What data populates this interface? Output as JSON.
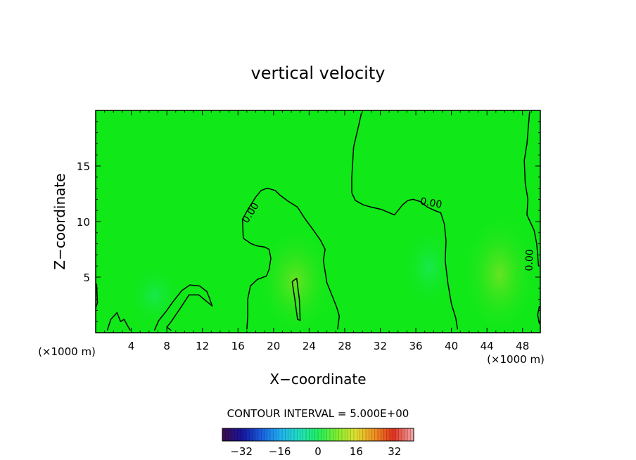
{
  "chart_data": {
    "type": "heatmap",
    "title": "vertical velocity",
    "xlabel": "X−coordinate",
    "ylabel": "Z−coordinate",
    "x_unit_left": "(×1000 m)",
    "x_unit_right": "(×1000 m)",
    "xlim": [
      0,
      50
    ],
    "ylim": [
      0,
      20
    ],
    "x_ticks": [
      4,
      8,
      12,
      16,
      20,
      24,
      28,
      32,
      36,
      40,
      44,
      48
    ],
    "y_ticks": [
      5,
      10,
      15
    ],
    "contour_interval_text": "CONTOUR INTERVAL = 5.000E+00",
    "colorbar": {
      "range": [
        -40,
        40
      ],
      "ticks": [
        -32,
        -16,
        0,
        16,
        32
      ],
      "tick_labels": [
        "−32",
        "−16",
        "0",
        "16",
        "32"
      ],
      "colors": [
        "#3a0c50",
        "#1515a0",
        "#1a5fe0",
        "#20b0f0",
        "#20e0c0",
        "#20f060",
        "#80f030",
        "#e0e030",
        "#f09020",
        "#e03020",
        "#f0a0a0"
      ]
    },
    "field_color": "#10e818",
    "contour_labels": [
      "0.00",
      "0.00",
      "0.00"
    ],
    "contours": [
      {
        "label": "0.00",
        "points": [
          [
            16.5,
            10.2
          ],
          [
            17.2,
            11.2
          ],
          [
            18,
            12.2
          ],
          [
            18.6,
            12.8
          ],
          [
            19.3,
            13
          ],
          [
            20.2,
            12.8
          ],
          [
            20.7,
            12.4
          ],
          [
            21.7,
            11.8
          ],
          [
            22.7,
            11.3
          ],
          [
            23.5,
            10.3
          ],
          [
            24.5,
            9.2
          ],
          [
            25.3,
            8.3
          ],
          [
            25.8,
            7.5
          ],
          [
            25.6,
            6.5
          ],
          [
            26,
            4.5
          ],
          [
            26.7,
            3.1
          ],
          [
            27.1,
            2.3
          ],
          [
            27.4,
            1.5
          ],
          [
            27.2,
            0.3
          ]
        ]
      },
      {
        "points": [
          [
            16.5,
            10.2
          ],
          [
            16.6,
            8.5
          ],
          [
            17.5,
            8
          ],
          [
            18.2,
            7.8
          ],
          [
            19,
            7.7
          ],
          [
            19.5,
            7.5
          ],
          [
            19.7,
            6.7
          ],
          [
            19.5,
            5.7
          ],
          [
            19.2,
            5.1
          ],
          [
            18.2,
            4.8
          ],
          [
            17.4,
            4.2
          ],
          [
            17.1,
            3
          ],
          [
            17.1,
            1.5
          ],
          [
            17,
            0.3
          ]
        ]
      },
      {
        "label": "0.00",
        "points": [
          [
            29.9,
            19.8
          ],
          [
            29.5,
            18.4
          ],
          [
            29,
            16.7
          ],
          [
            28.9,
            15.3
          ],
          [
            28.8,
            14
          ],
          [
            28.8,
            12.6
          ],
          [
            29.2,
            11.9
          ],
          [
            30.1,
            11.5
          ],
          [
            31,
            11.3
          ],
          [
            32.1,
            11.1
          ],
          [
            33,
            10.8
          ],
          [
            33.6,
            10.6
          ],
          [
            34,
            11
          ],
          [
            34.5,
            11.5
          ],
          [
            35.1,
            11.9
          ],
          [
            35.7,
            12
          ],
          [
            36.5,
            11.8
          ],
          [
            37.3,
            11.3
          ],
          [
            38.1,
            11
          ],
          [
            38.8,
            10.8
          ],
          [
            39.2,
            9.8
          ],
          [
            39.4,
            8.3
          ],
          [
            39.3,
            6.5
          ],
          [
            39.6,
            4.5
          ],
          [
            40,
            2.6
          ],
          [
            40.5,
            1.3
          ],
          [
            40.7,
            0.3
          ]
        ]
      },
      {
        "label": "0.00",
        "points": [
          [
            48.8,
            19.9
          ],
          [
            48.5,
            17
          ],
          [
            48.2,
            15.5
          ],
          [
            48.3,
            13.5
          ],
          [
            48.6,
            12
          ],
          [
            48.5,
            10.6
          ],
          [
            49.3,
            9.2
          ],
          [
            49.6,
            8
          ],
          [
            49.8,
            6
          ]
        ]
      },
      {
        "points": [
          [
            6.6,
            0.2
          ],
          [
            7.1,
            1.1
          ],
          [
            7.9,
            1.9
          ],
          [
            8.7,
            2.8
          ],
          [
            9.7,
            3.8
          ],
          [
            10.6,
            4.3
          ],
          [
            11.7,
            4.2
          ],
          [
            12.5,
            3.7
          ],
          [
            12.8,
            3.1
          ],
          [
            13.1,
            2.4
          ],
          [
            12.5,
            2.8
          ],
          [
            11.6,
            3.4
          ],
          [
            10.5,
            3.4
          ],
          [
            9.6,
            2.3
          ],
          [
            8.5,
            1
          ],
          [
            8,
            0.5
          ],
          [
            8.5,
            0.2
          ]
        ]
      },
      {
        "points": [
          [
            22.1,
            4.6
          ],
          [
            22.4,
            3
          ],
          [
            22.7,
            1.2
          ],
          [
            23,
            1.1
          ],
          [
            22.9,
            3
          ],
          [
            22.6,
            4.9
          ],
          [
            22.1,
            4.6
          ]
        ]
      },
      {
        "points": [
          [
            1.3,
            0.2
          ],
          [
            1.7,
            1.2
          ],
          [
            2.4,
            1.8
          ],
          [
            2.8,
            1
          ],
          [
            3.2,
            1.2
          ],
          [
            3.6,
            0.6
          ],
          [
            3.9,
            0.2
          ]
        ]
      },
      {
        "points": [
          [
            0.1,
            4.4
          ],
          [
            0.2,
            2.7
          ],
          [
            0,
            2.2
          ]
        ]
      },
      {
        "points": [
          [
            49.9,
            2.4
          ],
          [
            49.7,
            1.6
          ],
          [
            49.9,
            0.8
          ]
        ]
      }
    ]
  }
}
